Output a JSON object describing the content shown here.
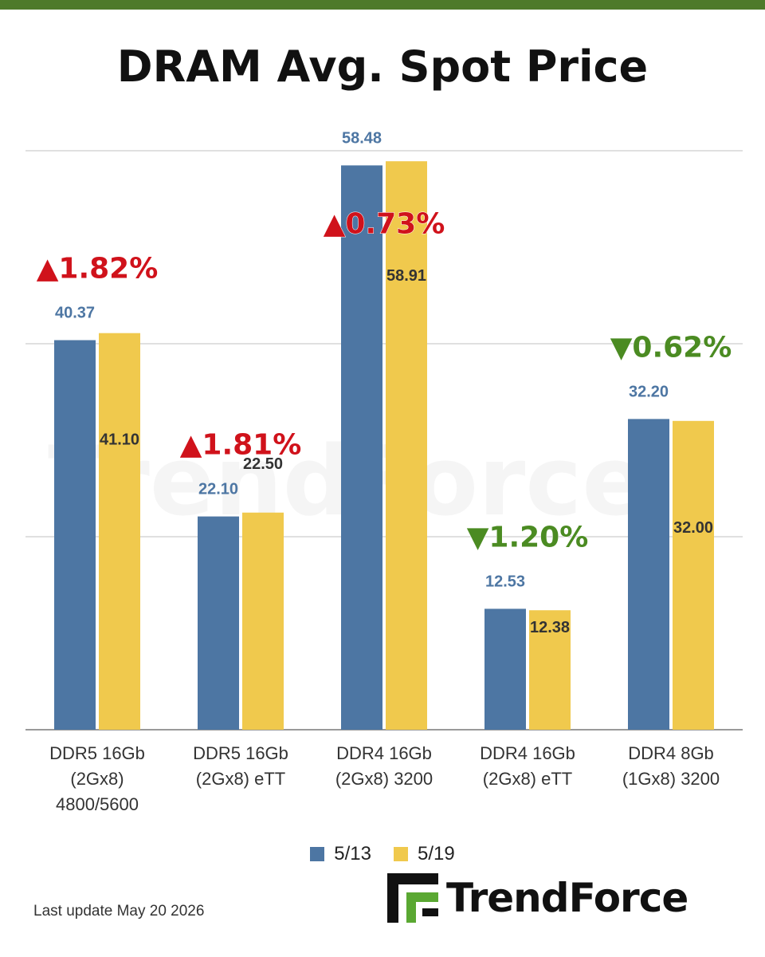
{
  "title": "DRAM Avg. Spot Price",
  "footer": {
    "last_update": "Last update  May 20  2026",
    "brand": "TrendForce"
  },
  "colors": {
    "series_a": "#4d76a3",
    "series_b": "#f0c94d",
    "up": "#d0121b",
    "down": "#4b8b22",
    "top_bar": "#4e7a2a",
    "grid": "#d6d6d6"
  },
  "chart_data": {
    "type": "bar",
    "title": "DRAM Avg. Spot Price",
    "categories": [
      [
        "DDR5 16Gb",
        "(2Gx8)",
        "4800/5600"
      ],
      [
        "DDR5 16Gb",
        "(2Gx8) eTT"
      ],
      [
        "DDR4 16Gb",
        "(2Gx8) 3200"
      ],
      [
        "DDR4 16Gb",
        "(2Gx8) eTT"
      ],
      [
        "DDR4 8Gb",
        "(1Gx8) 3200"
      ]
    ],
    "series": [
      {
        "name": "5/13",
        "values": [
          40.37,
          22.1,
          58.48,
          12.53,
          32.2
        ],
        "labels": [
          "40.37",
          "22.10",
          "58.48",
          "12.53",
          "32.20"
        ]
      },
      {
        "name": "5/19",
        "values": [
          41.1,
          22.5,
          58.91,
          12.38,
          32.0
        ],
        "labels": [
          "41.10",
          "22.50",
          "58.91",
          "12.38",
          "32.00"
        ]
      }
    ],
    "changes": [
      {
        "text": "▲1.82%",
        "direction": "up"
      },
      {
        "text": "▲1.81%",
        "direction": "up"
      },
      {
        "text": "▲0.73%",
        "direction": "up"
      },
      {
        "text": "▼1.20%",
        "direction": "down"
      },
      {
        "text": "▼0.62%",
        "direction": "down"
      }
    ],
    "ylim": [
      0,
      60
    ],
    "gridlines": [
      20,
      40,
      60
    ],
    "grid": true,
    "legend": "bottom"
  }
}
